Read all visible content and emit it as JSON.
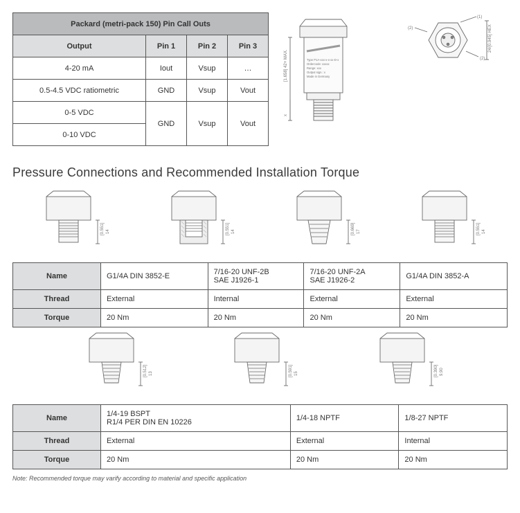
{
  "pinTable": {
    "title": "Packard (metri-pack 150) Pin Call Outs",
    "headers": [
      "Output",
      "Pin 1",
      "Pin 2",
      "Pin 3"
    ],
    "rows": [
      {
        "output": "4-20 mA",
        "p1": "Iout",
        "p2": "Vsup",
        "p3": "…"
      },
      {
        "output": "0.5-4.5 VDC ratiometric",
        "p1": "GND",
        "p2": "Vsup",
        "p3": "Vout"
      }
    ],
    "mergedRows": {
      "outputs": [
        "0-5 VDC",
        "0-10 VDC"
      ],
      "p1": "GND",
      "p2": "Vsup",
      "p3": "Vout"
    }
  },
  "sectionTitle": "Pressure Connections and Recommended Installation Torque",
  "connTable1": {
    "rowLabels": [
      "Name",
      "Thread",
      "Torque"
    ],
    "cols": [
      {
        "name": "G1/4A DIN 3852-E",
        "thread": "External",
        "torque": "20 Nm",
        "dim_in": "[0.551]",
        "dim_mm": "14",
        "type": "straight"
      },
      {
        "name": "7/16-20 UNF-2B\nSAE J1926-1",
        "thread": "Internal",
        "torque": "20 Nm",
        "dim_in": "[0.551]",
        "dim_mm": "14",
        "type": "internal"
      },
      {
        "name": "7/16-20 UNF-2A\nSAE J1926-2",
        "thread": "External",
        "torque": "20 Nm",
        "dim_in": "[0.669]",
        "dim_mm": "17",
        "type": "cone"
      },
      {
        "name": "G1/4A DIN 3852-A",
        "thread": "External",
        "torque": "20 Nm",
        "dim_in": "[0.551]",
        "dim_mm": "14",
        "type": "straight"
      }
    ]
  },
  "connTable2": {
    "rowLabels": [
      "Name",
      "Thread",
      "Torque"
    ],
    "cols": [
      {
        "name": "1/4-19 BSPT\nR1/4 PER DIN EN 10226",
        "thread": "External",
        "torque": "20 Nm",
        "dim_in": "[0.512]",
        "dim_mm": "13",
        "type": "taper"
      },
      {
        "name": "1/4-18 NPTF",
        "thread": "External",
        "torque": "20 Nm",
        "dim_in": "[0.591]",
        "dim_mm": "15",
        "type": "taper"
      },
      {
        "name": "1/8-27 NPTF",
        "thread": "Internal",
        "torque": "20 Nm",
        "dim_in": "[0.390]",
        "dim_mm": "9.90",
        "type": "taper"
      }
    ]
  },
  "note": "Note: Recommended torque may varify according to material and specific application",
  "sensorDiagram": {
    "labelLines": [
      "Type P1A-xxx-x-x-xx-D-x",
      "Ordercode: xxxxx",
      "Range: xxx",
      "Output sign.: x",
      "Made in Germany"
    ],
    "maxDim": "[1.658] 42+",
    "xDim": "x",
    "hexDim": "24/[0.945] HEX",
    "callouts": [
      "(1)",
      "(2)",
      "(2)"
    ]
  },
  "colors": {
    "line": "#6a6a6a",
    "fill": "#f6f6f6",
    "hatch": "#b8b8b8",
    "text": "#6a6a6a"
  }
}
